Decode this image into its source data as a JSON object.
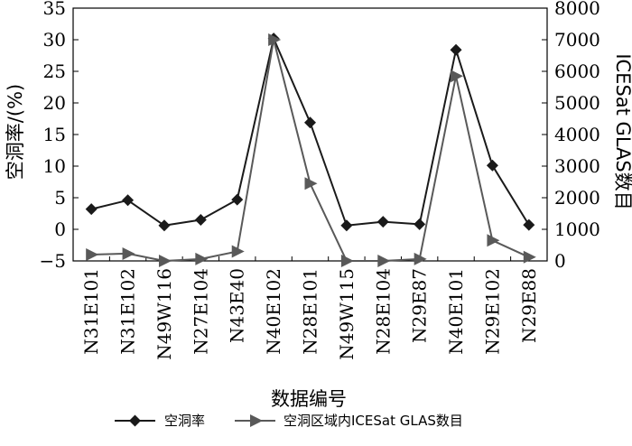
{
  "chart_data": {
    "type": "line",
    "categories": [
      "N31E101",
      "N31E102",
      "N49W116",
      "N27E104",
      "N43E40",
      "N40E102",
      "N28E101",
      "N49W115",
      "N28E104",
      "N29E87",
      "N40E101",
      "N29E102",
      "N29E88"
    ],
    "xlabel": "数据编号",
    "ylabel_left": "空洞率/(%)",
    "ylabel_right": "ICESat GLAS数目",
    "ylim_left": [
      -5,
      35
    ],
    "yticks_left": [
      -5,
      0,
      5,
      10,
      15,
      20,
      25,
      30,
      35
    ],
    "ylim_right": [
      0,
      8000
    ],
    "yticks_right": [
      0,
      1000,
      2000,
      3000,
      4000,
      5000,
      6000,
      7000,
      8000
    ],
    "grid": false,
    "legend_position": "bottom",
    "series": [
      {
        "name": "空洞率",
        "axis": "left",
        "color": "#1a1a1a",
        "marker": "diamond",
        "values": [
          3.2,
          4.6,
          0.6,
          1.5,
          4.7,
          30.2,
          16.9,
          0.6,
          1.2,
          0.8,
          28.4,
          10.1,
          0.7
        ]
      },
      {
        "name": "空洞区域内ICESat GLAS数目",
        "axis": "right",
        "color": "#595959",
        "marker": "triangle-right",
        "values": [
          200,
          230,
          0,
          60,
          300,
          7000,
          2450,
          0,
          0,
          60,
          5850,
          650,
          120
        ]
      }
    ]
  }
}
